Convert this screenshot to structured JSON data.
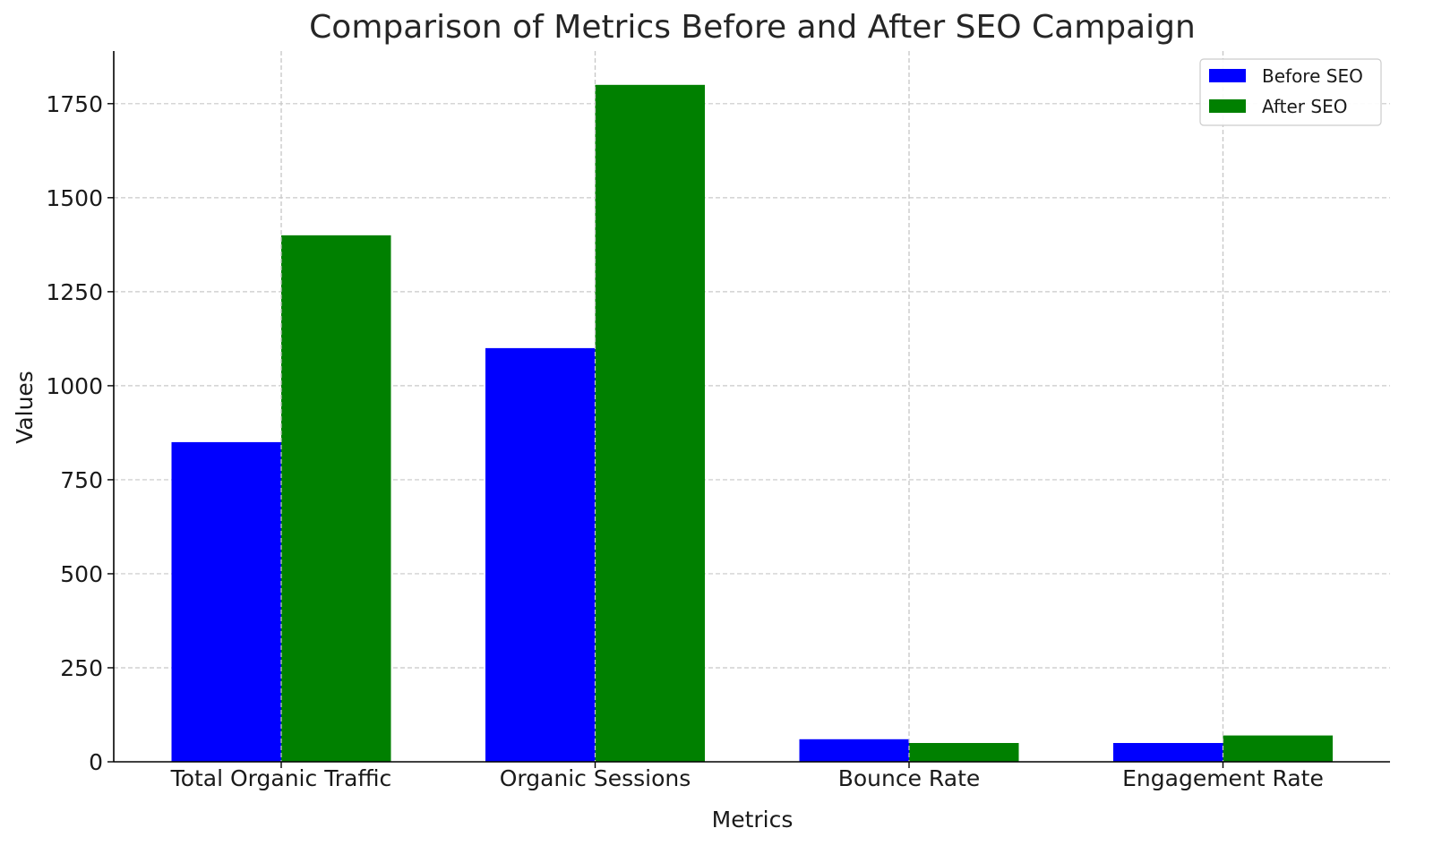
{
  "chart_data": {
    "type": "bar",
    "title": "Comparison of Metrics Before and After SEO Campaign",
    "xlabel": "Metrics",
    "ylabel": "Values",
    "categories": [
      "Total Organic Traffic",
      "Organic Sessions",
      "Bounce Rate",
      "Engagement Rate"
    ],
    "series": [
      {
        "name": "Before SEO",
        "values": [
          850,
          1100,
          60,
          50
        ],
        "color": "#0000ff"
      },
      {
        "name": "After SEO",
        "values": [
          1400,
          1800,
          50,
          70
        ],
        "color": "#008000"
      }
    ],
    "ylim": [
      0,
      1890
    ],
    "yticks": [
      0,
      250,
      500,
      750,
      1000,
      1250,
      1500,
      1750
    ],
    "ytick_labels": [
      "0",
      "250",
      "500",
      "750",
      "1000",
      "1250",
      "1500",
      "1750"
    ],
    "grid": true,
    "legend_position": "top-right"
  }
}
